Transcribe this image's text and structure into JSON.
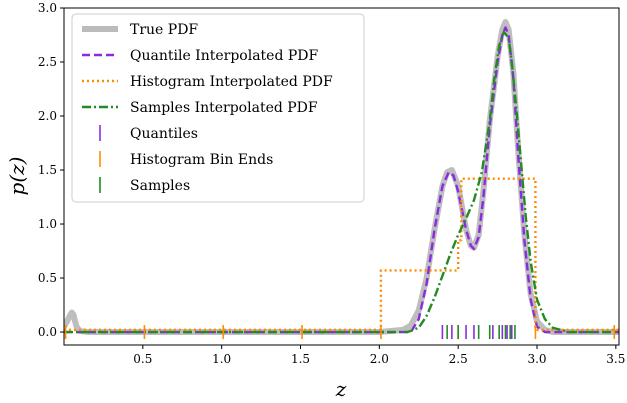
{
  "chart_data": {
    "type": "line",
    "xlabel": "z",
    "ylabel": "p(z)",
    "xlim": [
      0.0,
      3.52
    ],
    "ylim": [
      -0.12,
      3.0
    ],
    "x_ticks": [
      0.5,
      1.0,
      1.5,
      2.0,
      2.5,
      3.0,
      3.5
    ],
    "x_tick_labels": [
      "0.5",
      "1.0",
      "1.5",
      "2.0",
      "2.5",
      "3.0",
      "3.5"
    ],
    "y_ticks": [
      0.0,
      0.5,
      1.0,
      1.5,
      2.0,
      2.5,
      3.0
    ],
    "y_tick_labels": [
      "0.0",
      "0.5",
      "1.0",
      "1.5",
      "2.0",
      "2.5",
      "3.0"
    ],
    "grid": false,
    "legend_position": "top-left",
    "series": [
      {
        "name": "True PDF",
        "color": "#bbbbbb",
        "style": "solid-thick",
        "x": [
          0.0,
          0.02,
          0.04,
          0.05,
          0.06,
          0.07,
          0.08,
          0.1,
          0.15,
          2.0,
          2.15,
          2.2,
          2.25,
          2.3,
          2.35,
          2.4,
          2.43,
          2.46,
          2.5,
          2.55,
          2.58,
          2.6,
          2.63,
          2.66,
          2.7,
          2.75,
          2.78,
          2.8,
          2.82,
          2.85,
          2.88,
          2.92,
          2.96,
          3.0,
          3.05,
          3.1,
          3.2,
          3.52
        ],
        "y": [
          0.05,
          0.1,
          0.16,
          0.18,
          0.16,
          0.1,
          0.05,
          0.01,
          0.0,
          0.0,
          0.02,
          0.06,
          0.2,
          0.5,
          0.95,
          1.35,
          1.48,
          1.5,
          1.35,
          0.95,
          0.8,
          0.78,
          0.9,
          1.3,
          1.95,
          2.55,
          2.8,
          2.87,
          2.8,
          2.4,
          1.7,
          0.9,
          0.35,
          0.1,
          0.02,
          0.0,
          0.0,
          0.0
        ]
      },
      {
        "name": "Quantile Interpolated PDF",
        "color": "#8a2be2",
        "style": "dashed",
        "x": [
          0.0,
          2.0,
          2.2,
          2.25,
          2.3,
          2.35,
          2.4,
          2.44,
          2.47,
          2.5,
          2.55,
          2.58,
          2.6,
          2.63,
          2.66,
          2.7,
          2.75,
          2.78,
          2.8,
          2.82,
          2.85,
          2.88,
          2.92,
          2.96,
          3.0,
          3.05,
          3.52
        ],
        "y": [
          0.0,
          0.0,
          0.0,
          0.12,
          0.45,
          0.95,
          1.35,
          1.48,
          1.45,
          1.3,
          0.95,
          0.8,
          0.77,
          0.88,
          1.25,
          1.9,
          2.5,
          2.75,
          2.82,
          2.75,
          2.35,
          1.65,
          0.85,
          0.3,
          0.05,
          0.0,
          0.0
        ]
      },
      {
        "name": "Histogram Interpolated PDF",
        "color": "#ff8c00",
        "style": "dotted",
        "x": [
          0.0,
          2.01,
          2.01,
          2.5,
          2.5,
          2.52,
          2.52,
          2.99,
          2.99,
          3.52
        ],
        "y": [
          0.02,
          0.02,
          0.57,
          0.57,
          0.85,
          0.85,
          1.42,
          1.42,
          0.02,
          0.02
        ]
      },
      {
        "name": "Samples Interpolated PDF",
        "color": "#228b22",
        "style": "dashdot",
        "x": [
          0.0,
          2.18,
          2.25,
          2.3,
          2.35,
          2.4,
          2.45,
          2.5,
          2.55,
          2.6,
          2.65,
          2.7,
          2.73,
          2.76,
          2.79,
          2.82,
          2.84,
          2.87,
          2.9,
          2.93,
          2.96,
          3.0,
          3.05,
          3.1,
          3.2,
          3.52
        ],
        "y": [
          0.0,
          0.0,
          0.04,
          0.15,
          0.32,
          0.52,
          0.72,
          0.9,
          1.05,
          1.22,
          1.48,
          1.95,
          2.35,
          2.65,
          2.78,
          2.72,
          2.5,
          2.05,
          1.55,
          1.05,
          0.65,
          0.3,
          0.12,
          0.04,
          0.0,
          0.0
        ]
      }
    ],
    "markers": [
      {
        "name": "Quantiles",
        "color": "#8a2be2",
        "x": [
          2.4,
          2.46,
          2.55,
          2.6,
          2.72,
          2.78,
          2.81,
          2.84
        ]
      },
      {
        "name": "Histogram Bin Ends",
        "color": "#ff8c00",
        "x": [
          0.01,
          0.51,
          1.01,
          1.51,
          2.01,
          2.5,
          2.99,
          3.49
        ]
      },
      {
        "name": "Samples",
        "color": "#228b22",
        "x": [
          2.43,
          2.5,
          2.63,
          2.7,
          2.76,
          2.8,
          2.83,
          2.86
        ]
      }
    ],
    "legend_entries": [
      {
        "label": "True PDF",
        "kind": "line",
        "style": "solid-thick",
        "color": "#bbbbbb"
      },
      {
        "label": "Quantile Interpolated PDF",
        "kind": "line",
        "style": "dashed",
        "color": "#8a2be2"
      },
      {
        "label": "Histogram Interpolated PDF",
        "kind": "line",
        "style": "dotted",
        "color": "#ff8c00"
      },
      {
        "label": "Samples Interpolated PDF",
        "kind": "line",
        "style": "dashdot",
        "color": "#228b22"
      },
      {
        "label": "Quantiles",
        "kind": "marker",
        "color": "#8a2be2"
      },
      {
        "label": "Histogram Bin Ends",
        "kind": "marker",
        "color": "#ff8c00"
      },
      {
        "label": "Samples",
        "kind": "marker",
        "color": "#228b22"
      }
    ]
  }
}
